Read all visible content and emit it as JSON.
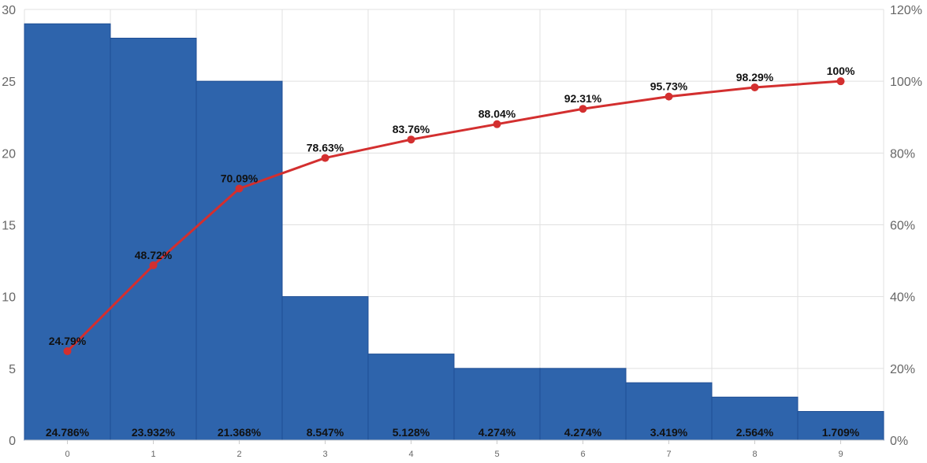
{
  "chart_data": {
    "type": "bar",
    "categories": [
      "0",
      "1",
      "2",
      "3",
      "4",
      "5",
      "6",
      "7",
      "8",
      "9"
    ],
    "series": [
      {
        "type": "bar",
        "values": [
          29,
          28,
          25,
          10,
          6,
          5,
          5,
          4,
          3,
          2
        ],
        "data_labels": [
          "24.786%",
          "23.932%",
          "21.368%",
          "8.547%",
          "5.128%",
          "4.274%",
          "4.274%",
          "3.419%",
          "2.564%",
          "1.709%"
        ],
        "color": "#2E64AC",
        "axis": "left"
      },
      {
        "type": "line",
        "values": [
          24.79,
          48.72,
          70.09,
          78.63,
          83.76,
          88.04,
          92.31,
          95.73,
          98.29,
          100
        ],
        "data_labels": [
          "24.79%",
          "48.72%",
          "70.09%",
          "78.63%",
          "83.76%",
          "88.04%",
          "92.31%",
          "95.73%",
          "98.29%",
          "100%"
        ],
        "color": "#D32F2F",
        "axis": "right"
      }
    ],
    "y_left": {
      "ylim": [
        0,
        30
      ],
      "ticks": [
        "0",
        "5",
        "10",
        "15",
        "20",
        "25",
        "30"
      ]
    },
    "y_right": {
      "ylim": [
        0,
        120
      ],
      "ticks": [
        "0%",
        "20%",
        "40%",
        "60%",
        "80%",
        "100%",
        "120%"
      ]
    },
    "xlabel": "",
    "ylabel": "",
    "grid": true,
    "legend": "none"
  }
}
